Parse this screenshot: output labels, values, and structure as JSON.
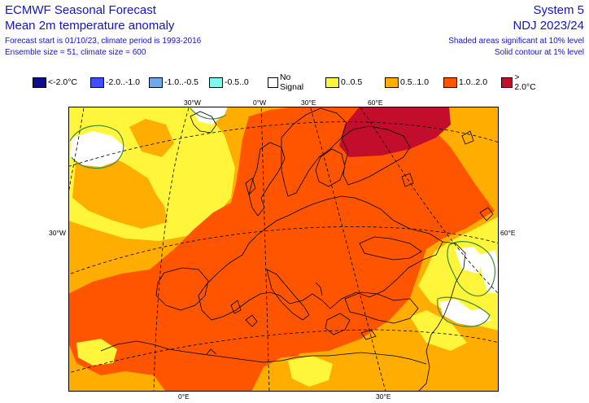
{
  "header": {
    "title": "ECMWF Seasonal Forecast",
    "subtitle": "Mean 2m temperature anomaly",
    "forecast_info": "Forecast start is 01/10/23, climate period is 1993-2016",
    "ensemble_info": "Ensemble size = 51, climate size = 600",
    "system": "System 5",
    "period": "NDJ 2023/24",
    "significance_10": "Shaded areas significant at 10% level",
    "significance_1": "Solid contour at 1% level"
  },
  "legend": [
    {
      "label": "<-2.0°C",
      "color": "#0d0d8e"
    },
    {
      "label": "-2.0..-1.0",
      "color": "#3f4dff"
    },
    {
      "label": "-1.0..-0.5",
      "color": "#6fa9e8"
    },
    {
      "label": "-0.5..0",
      "color": "#7ff7f0"
    },
    {
      "label": "No Signal",
      "color": "#ffffff"
    },
    {
      "label": "0..0.5",
      "color": "#fff63b"
    },
    {
      "label": "0.5..1.0",
      "color": "#ffad00"
    },
    {
      "label": "1.0..2.0",
      "color": "#ff5500"
    },
    {
      "label": "> 2.0°C",
      "color": "#c20d2d"
    }
  ],
  "axis_labels": {
    "top": [
      "30°W",
      "0°W",
      "30°E",
      "60°E"
    ],
    "left": "30°W",
    "right": "60°E",
    "bottom": [
      "0°E",
      "30°E"
    ]
  },
  "map_colors": {
    "ocean_orange": "#ffad00",
    "land_red": "#ff5500",
    "yellow": "#fff63b",
    "dark_red": "#c20d2d",
    "no_signal": "#ffffff",
    "contour_green": "#3d8a3d",
    "coast": "#000000",
    "grid": "#000000"
  }
}
